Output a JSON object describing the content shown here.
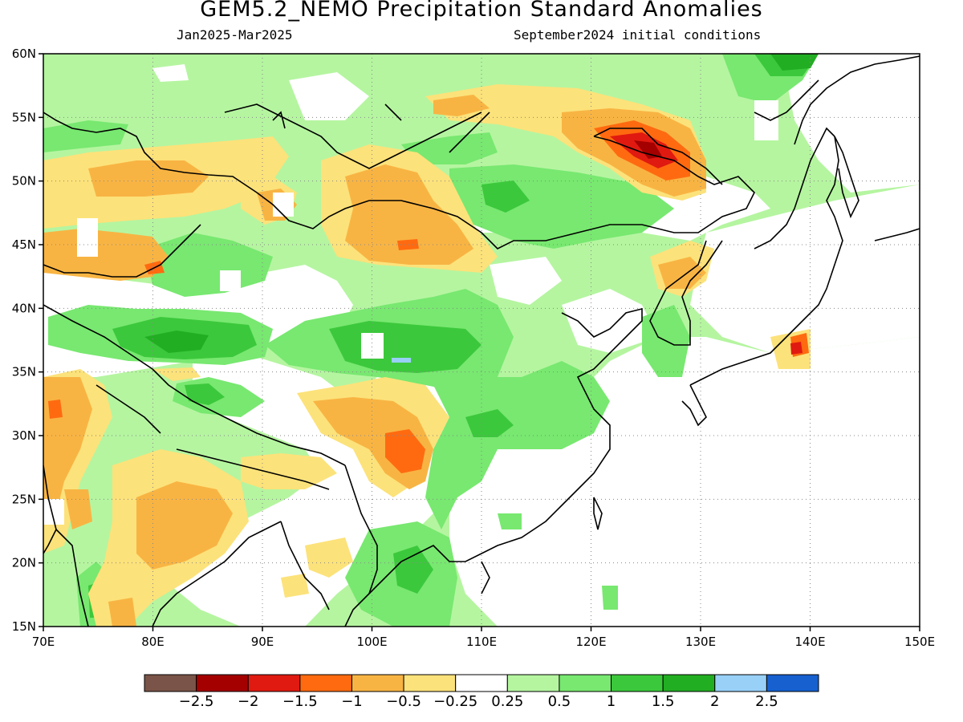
{
  "header": {
    "title": "GEM5.2_NEMO Precipitation Standard Anomalies",
    "period": "Jan2025-Mar2025",
    "init": "September2024 initial conditions"
  },
  "map": {
    "lon_range": [
      70,
      150
    ],
    "lat_range": [
      15,
      60
    ],
    "lon_ticks": [
      {
        "value": 70,
        "label": "70E"
      },
      {
        "value": 80,
        "label": "80E"
      },
      {
        "value": 90,
        "label": "90E"
      },
      {
        "value": 100,
        "label": "100E"
      },
      {
        "value": 110,
        "label": "110E"
      },
      {
        "value": 120,
        "label": "120E"
      },
      {
        "value": 130,
        "label": "130E"
      },
      {
        "value": 140,
        "label": "140E"
      },
      {
        "value": 150,
        "label": "150E"
      }
    ],
    "lat_ticks": [
      {
        "value": 15,
        "label": "15N"
      },
      {
        "value": 20,
        "label": "20N"
      },
      {
        "value": 25,
        "label": "25N"
      },
      {
        "value": 30,
        "label": "30N"
      },
      {
        "value": 35,
        "label": "35N"
      },
      {
        "value": 40,
        "label": "40N"
      },
      {
        "value": 45,
        "label": "45N"
      },
      {
        "value": 50,
        "label": "50N"
      },
      {
        "value": 55,
        "label": "55N"
      },
      {
        "value": 60,
        "label": "60N"
      }
    ],
    "grid": true
  },
  "colorbar": {
    "colors": [
      "#7a5448",
      "#a40000",
      "#e01a10",
      "#ff6a10",
      "#f8b443",
      "#fce27a",
      "#ffffff",
      "#b5f5a0",
      "#78e870",
      "#3cc83c",
      "#22ae22",
      "#98d0f8",
      "#1660d0"
    ],
    "labels": [
      "-2.5",
      "-2",
      "-1.5",
      "-1",
      "-0.5",
      "-0.25",
      "0.25",
      "0.5",
      "1",
      "1.5",
      "2",
      "2.5"
    ]
  }
}
